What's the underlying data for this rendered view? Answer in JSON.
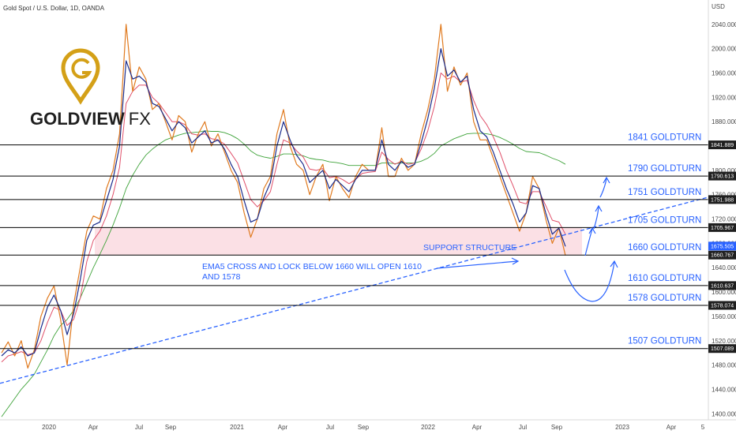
{
  "header": {
    "symbol_title": "Gold Spot / U.S. Dollar, 1D, OANDA"
  },
  "logo": {
    "brand": "GOLDVIEW",
    "suffix": "FX"
  },
  "colors": {
    "price": "#e07a1f",
    "ema_fast": "#1a2c8c",
    "ema_mid": "#e0506a",
    "ema_slow": "#3fa33a",
    "level_line": "#000000",
    "label_blue": "#2962ff",
    "zone": "#f7c6cf",
    "tag_bg": "#1f1f1f",
    "current_tag_bg": "#2962ff",
    "logo_gold": "#d4a017"
  },
  "chart_data": {
    "type": "line",
    "title": "Gold Spot / U.S. Dollar, 1D, OANDA",
    "y_unit": "USD",
    "ylim": [
      1390,
      2080
    ],
    "x_ticks": [
      "2020",
      "Apr",
      "Jul",
      "Sep",
      "2021",
      "Apr",
      "Jul",
      "Sep",
      "2022",
      "Apr",
      "Jul",
      "Sep",
      "2023",
      "Apr",
      "5"
    ],
    "y_ticks": [
      1400,
      1440,
      1480,
      1520,
      1560,
      1600,
      1640,
      1680,
      1720,
      1760,
      1800,
      1840,
      1880,
      1920,
      1960,
      2000,
      2040
    ],
    "y_tick_labels": [
      "1400.000",
      "1440.000",
      "1480.000",
      "1520.000",
      "1560.000",
      "1600.000",
      "1640.000",
      "1680.000",
      "1720.000",
      "1760.000",
      "1800.000",
      "1840.000",
      "1880.000",
      "1920.000",
      "1960.000",
      "2000.000",
      "2040.000"
    ],
    "series": [
      {
        "role": "price",
        "values": [
          1500,
          1518,
          1495,
          1520,
          1475,
          1505,
          1560,
          1590,
          1610,
          1555,
          1480,
          1580,
          1640,
          1700,
          1725,
          1720,
          1770,
          1800,
          1860,
          2040,
          1930,
          1970,
          1950,
          1900,
          1910,
          1880,
          1850,
          1890,
          1880,
          1830,
          1860,
          1880,
          1840,
          1860,
          1830,
          1800,
          1780,
          1730,
          1690,
          1720,
          1770,
          1790,
          1860,
          1900,
          1840,
          1810,
          1800,
          1760,
          1790,
          1810,
          1750,
          1790,
          1770,
          1755,
          1790,
          1810,
          1800,
          1800,
          1870,
          1790,
          1790,
          1820,
          1800,
          1810,
          1860,
          1900,
          1950,
          2040,
          1930,
          1970,
          1940,
          1960,
          1880,
          1850,
          1850,
          1820,
          1790,
          1760,
          1730,
          1700,
          1730,
          1790,
          1770,
          1720,
          1680,
          1705,
          1660
        ]
      },
      {
        "role": "ema-fast",
        "values": [
          1495,
          1505,
          1500,
          1510,
          1495,
          1500,
          1540,
          1575,
          1595,
          1570,
          1530,
          1565,
          1620,
          1685,
          1710,
          1715,
          1750,
          1785,
          1840,
          1980,
          1950,
          1955,
          1945,
          1910,
          1905,
          1885,
          1865,
          1880,
          1870,
          1845,
          1855,
          1865,
          1845,
          1850,
          1835,
          1810,
          1790,
          1750,
          1715,
          1720,
          1755,
          1780,
          1840,
          1880,
          1850,
          1825,
          1810,
          1780,
          1790,
          1800,
          1770,
          1785,
          1775,
          1765,
          1785,
          1800,
          1800,
          1800,
          1850,
          1810,
          1800,
          1815,
          1805,
          1810,
          1845,
          1885,
          1935,
          2000,
          1955,
          1965,
          1945,
          1955,
          1900,
          1865,
          1855,
          1830,
          1800,
          1770,
          1745,
          1715,
          1730,
          1775,
          1770,
          1730,
          1695,
          1705,
          1675
        ]
      },
      {
        "role": "ema-mid",
        "values": [
          1485,
          1495,
          1498,
          1502,
          1497,
          1500,
          1520,
          1550,
          1575,
          1570,
          1545,
          1555,
          1590,
          1650,
          1685,
          1700,
          1725,
          1760,
          1805,
          1910,
          1930,
          1940,
          1940,
          1920,
          1910,
          1895,
          1880,
          1880,
          1875,
          1860,
          1858,
          1860,
          1852,
          1850,
          1843,
          1828,
          1812,
          1782,
          1752,
          1740,
          1750,
          1765,
          1810,
          1850,
          1845,
          1832,
          1822,
          1802,
          1800,
          1803,
          1788,
          1790,
          1785,
          1778,
          1785,
          1795,
          1797,
          1798,
          1830,
          1818,
          1810,
          1815,
          1810,
          1812,
          1835,
          1865,
          1905,
          1960,
          1950,
          1955,
          1945,
          1948,
          1915,
          1890,
          1875,
          1855,
          1830,
          1800,
          1775,
          1748,
          1745,
          1765,
          1765,
          1742,
          1718,
          1715,
          1695
        ]
      },
      {
        "role": "ema-slow",
        "values": [
          1395,
          1410,
          1425,
          1440,
          1452,
          1465,
          1485,
          1505,
          1528,
          1545,
          1555,
          1570,
          1590,
          1615,
          1640,
          1662,
          1685,
          1710,
          1738,
          1770,
          1792,
          1810,
          1825,
          1835,
          1843,
          1850,
          1854,
          1858,
          1861,
          1862,
          1863,
          1865,
          1864,
          1864,
          1862,
          1858,
          1852,
          1843,
          1832,
          1825,
          1822,
          1820,
          1823,
          1827,
          1827,
          1826,
          1824,
          1820,
          1818,
          1817,
          1814,
          1813,
          1811,
          1808,
          1808,
          1808,
          1808,
          1808,
          1812,
          1812,
          1811,
          1812,
          1812,
          1812,
          1815,
          1820,
          1828,
          1840,
          1846,
          1852,
          1856,
          1860,
          1861,
          1861,
          1860,
          1858,
          1854,
          1849,
          1843,
          1836,
          1831,
          1830,
          1829,
          1825,
          1820,
          1816,
          1810
        ]
      }
    ],
    "levels": [
      {
        "value": 1841.889,
        "tag": "1841.889",
        "label": "1841 GOLDTURN"
      },
      {
        "value": 1790.613,
        "tag": "1790.613",
        "label": "1790 GOLDTURN"
      },
      {
        "value": 1751.988,
        "tag": "1751.988",
        "label": "1751 GOLDTURN"
      },
      {
        "value": 1705.967,
        "tag": "1705.967",
        "label": "1705 GOLDTURN"
      },
      {
        "value": 1660.767,
        "tag": "1660.767",
        "label": "1660 GOLDTURN"
      },
      {
        "value": 1610.637,
        "tag": "1610.637",
        "label": "1610 GOLDTURN"
      },
      {
        "value": 1578.074,
        "tag": "1578.074",
        "label": "1578 GOLDTURN"
      },
      {
        "value": 1507.089,
        "tag": "1507.089",
        "label": "1507 GOLDTURN"
      }
    ],
    "current_price": {
      "value": 1675.505,
      "tag": "1675.505"
    },
    "support_zone": {
      "from": 1660.767,
      "to": 1705.967,
      "label": "SUPPORT STRUCTURE"
    },
    "trendline": {
      "from": [
        0,
        1450
      ],
      "to": [
        1,
        1756
      ]
    },
    "annotation": {
      "line1": "EMA5 CROSS AND LOCK BELOW 1660 WILL OPEN 1610",
      "line2": "AND 1578"
    }
  }
}
